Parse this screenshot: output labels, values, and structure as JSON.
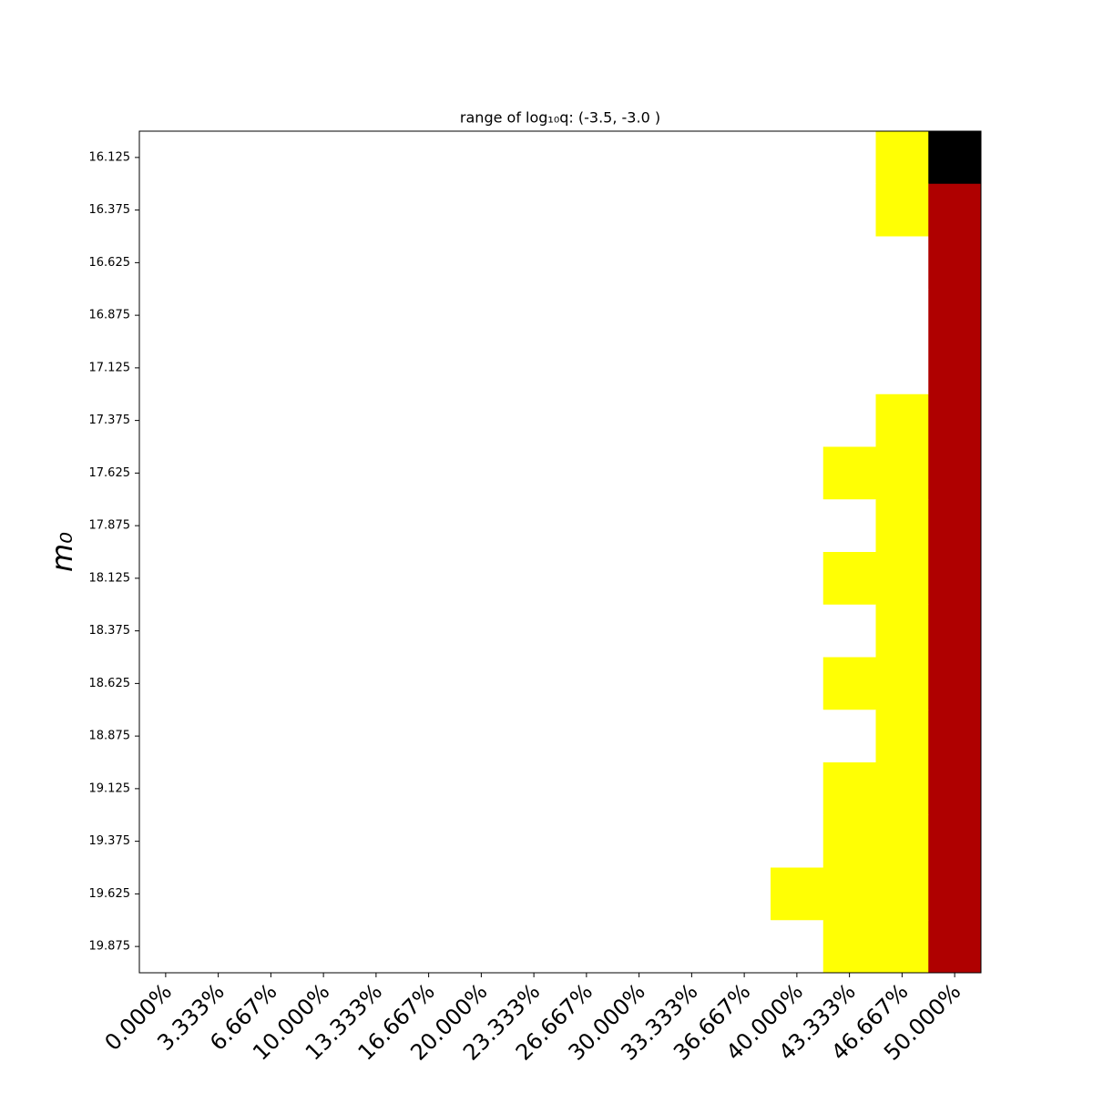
{
  "chart_data": {
    "type": "heatmap",
    "title": "range of log₁₀q: (-3.5, -3.0 )",
    "ylabel": "m₀",
    "colormap": "hot",
    "x_categories": [
      "0.000%",
      "3.333%",
      "6.667%",
      "10.000%",
      "13.333%",
      "16.667%",
      "20.000%",
      "23.333%",
      "26.667%",
      "30.000%",
      "33.333%",
      "36.667%",
      "40.000%",
      "43.333%",
      "46.667%",
      "50.000%"
    ],
    "y_categories": [
      "16.125",
      "16.375",
      "16.625",
      "16.875",
      "17.125",
      "17.375",
      "17.625",
      "17.875",
      "18.125",
      "18.375",
      "18.625",
      "18.875",
      "19.125",
      "19.375",
      "19.625",
      "19.875"
    ],
    "z": [
      [
        1,
        1,
        1,
        1,
        1,
        1,
        1,
        1,
        1,
        1,
        1,
        1,
        1,
        1,
        0.75,
        0
      ],
      [
        1,
        1,
        1,
        1,
        1,
        1,
        1,
        1,
        1,
        1,
        1,
        1,
        1,
        1,
        0.75,
        0.25
      ],
      [
        1,
        1,
        1,
        1,
        1,
        1,
        1,
        1,
        1,
        1,
        1,
        1,
        1,
        1,
        1,
        0.25
      ],
      [
        1,
        1,
        1,
        1,
        1,
        1,
        1,
        1,
        1,
        1,
        1,
        1,
        1,
        1,
        1,
        0.25
      ],
      [
        1,
        1,
        1,
        1,
        1,
        1,
        1,
        1,
        1,
        1,
        1,
        1,
        1,
        1,
        1,
        0.25
      ],
      [
        1,
        1,
        1,
        1,
        1,
        1,
        1,
        1,
        1,
        1,
        1,
        1,
        1,
        1,
        0.75,
        0.25
      ],
      [
        1,
        1,
        1,
        1,
        1,
        1,
        1,
        1,
        1,
        1,
        1,
        1,
        1,
        0.75,
        0.75,
        0.25
      ],
      [
        1,
        1,
        1,
        1,
        1,
        1,
        1,
        1,
        1,
        1,
        1,
        1,
        1,
        1,
        0.75,
        0.25
      ],
      [
        1,
        1,
        1,
        1,
        1,
        1,
        1,
        1,
        1,
        1,
        1,
        1,
        1,
        0.75,
        0.75,
        0.25
      ],
      [
        1,
        1,
        1,
        1,
        1,
        1,
        1,
        1,
        1,
        1,
        1,
        1,
        1,
        1,
        0.75,
        0.25
      ],
      [
        1,
        1,
        1,
        1,
        1,
        1,
        1,
        1,
        1,
        1,
        1,
        1,
        1,
        0.75,
        0.75,
        0.25
      ],
      [
        1,
        1,
        1,
        1,
        1,
        1,
        1,
        1,
        1,
        1,
        1,
        1,
        1,
        1,
        0.75,
        0.25
      ],
      [
        1,
        1,
        1,
        1,
        1,
        1,
        1,
        1,
        1,
        1,
        1,
        1,
        1,
        0.75,
        0.75,
        0.25
      ],
      [
        1,
        1,
        1,
        1,
        1,
        1,
        1,
        1,
        1,
        1,
        1,
        1,
        1,
        0.75,
        0.75,
        0.25
      ],
      [
        1,
        1,
        1,
        1,
        1,
        1,
        1,
        1,
        1,
        1,
        1,
        1,
        0.75,
        0.75,
        0.75,
        0.25
      ],
      [
        1,
        1,
        1,
        1,
        1,
        1,
        1,
        1,
        1,
        1,
        1,
        1,
        1,
        0.75,
        0.75,
        0.25
      ]
    ]
  }
}
